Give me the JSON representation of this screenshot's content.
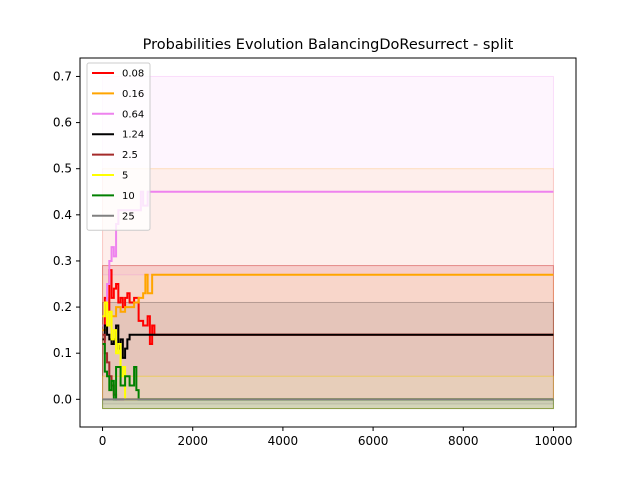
{
  "chart_data": {
    "type": "line",
    "title": "Probabilities Evolution BalancingDoResurrect  - split",
    "xlabel": "",
    "ylabel": "",
    "xlim": [
      -500,
      10500
    ],
    "ylim": [
      -0.06,
      0.74
    ],
    "xticks": [
      0,
      2000,
      4000,
      6000,
      8000,
      10000
    ],
    "xtick_labels": [
      "0",
      "2000",
      "4000",
      "6000",
      "8000",
      "10000"
    ],
    "yticks": [
      0.0,
      0.1,
      0.2,
      0.3,
      0.4,
      0.5,
      0.6,
      0.7
    ],
    "ytick_labels": [
      "0.0",
      "0.1",
      "0.2",
      "0.3",
      "0.4",
      "0.5",
      "0.6",
      "0.7"
    ],
    "grid": false,
    "legend_position": "top-left",
    "series": [
      {
        "name": "0.08",
        "color": "#ff0000",
        "x": [
          0,
          50,
          100,
          150,
          200,
          250,
          300,
          350,
          400,
          450,
          500,
          550,
          600,
          700,
          800,
          900,
          1000,
          1050,
          1100,
          1150,
          10000
        ],
        "y": [
          0.16,
          0.22,
          0.19,
          0.28,
          0.22,
          0.24,
          0.25,
          0.21,
          0.22,
          0.2,
          0.22,
          0.23,
          0.21,
          0.22,
          0.17,
          0.16,
          0.18,
          0.12,
          0.16,
          0.14,
          0.14
        ],
        "band_low": 0.0,
        "band_high": 0.29
      },
      {
        "name": "0.16",
        "color": "#ffa500",
        "x": [
          0,
          100,
          200,
          300,
          400,
          500,
          600,
          700,
          800,
          900,
          950,
          1000,
          1100,
          1150,
          10000
        ],
        "y": [
          0.15,
          0.19,
          0.18,
          0.2,
          0.19,
          0.2,
          0.2,
          0.21,
          0.22,
          0.23,
          0.27,
          0.23,
          0.27,
          0.27,
          0.27
        ],
        "band_low": 0.05,
        "band_high": 0.5
      },
      {
        "name": "0.64",
        "color": "#ee82ee",
        "x": [
          0,
          100,
          150,
          200,
          250,
          300,
          350,
          400,
          500,
          600,
          700,
          800,
          850,
          900,
          1000,
          10000
        ],
        "y": [
          0.16,
          0.25,
          0.3,
          0.33,
          0.31,
          0.38,
          0.41,
          0.41,
          0.41,
          0.41,
          0.41,
          0.41,
          0.45,
          0.42,
          0.45,
          0.45
        ],
        "band_low": 0.27,
        "band_high": 0.7
      },
      {
        "name": "1.24",
        "color": "#000000",
        "x": [
          0,
          50,
          100,
          150,
          200,
          250,
          300,
          350,
          400,
          450,
          500,
          550,
          600,
          10000
        ],
        "y": [
          0.13,
          0.16,
          0.14,
          0.13,
          0.12,
          0.13,
          0.16,
          0.11,
          0.13,
          0.09,
          0.11,
          0.13,
          0.14,
          0.14
        ],
        "band_low": -0.02,
        "band_high": 0.21
      },
      {
        "name": "2.5",
        "color": "#a52a2a",
        "x": [
          0,
          50,
          100,
          150,
          200,
          250,
          300,
          10000
        ],
        "y": [
          0.14,
          0.1,
          0.08,
          0.05,
          0.03,
          0.01,
          0.0,
          0.0
        ],
        "band_low": -0.02,
        "band_high": 0.29
      },
      {
        "name": "5",
        "color": "#ffff00",
        "x": [
          0,
          50,
          100,
          150,
          200,
          250,
          300,
          350,
          400,
          450,
          500,
          10000
        ],
        "y": [
          0.18,
          0.21,
          0.16,
          0.19,
          0.13,
          0.15,
          0.1,
          0.12,
          0.05,
          0.07,
          0.0,
          0.0
        ],
        "band_low": -0.02,
        "band_high": 0.05
      },
      {
        "name": "10",
        "color": "#008000",
        "x": [
          0,
          50,
          100,
          150,
          200,
          250,
          300,
          400,
          500,
          600,
          700,
          750,
          800,
          10000
        ],
        "y": [
          0.12,
          0.06,
          0.05,
          0.02,
          0.04,
          0.0,
          0.07,
          0.03,
          0.05,
          0.03,
          0.07,
          0.02,
          0.0,
          0.0
        ],
        "band_low": -0.02,
        "band_high": 0.0
      },
      {
        "name": "25",
        "color": "#808080",
        "x": [
          0,
          100,
          200,
          10000
        ],
        "y": [
          0.0,
          0.0,
          0.0,
          0.0
        ],
        "band_low": -0.01,
        "band_high": 0.0
      }
    ]
  }
}
